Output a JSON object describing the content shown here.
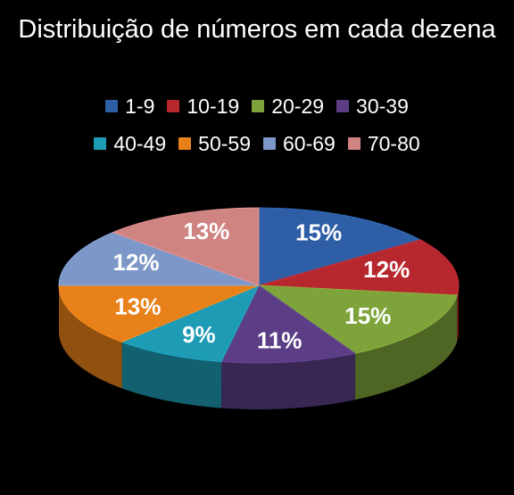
{
  "chart_data": {
    "type": "pie",
    "title": "Distribuição de números em cada dezena",
    "categories": [
      "1-9",
      "10-19",
      "20-29",
      "30-39",
      "40-49",
      "50-59",
      "60-69",
      "70-80"
    ],
    "values": [
      15,
      12,
      15,
      11,
      9,
      13,
      12,
      13
    ],
    "labels": [
      "15%",
      "12%",
      "15%",
      "11%",
      "9%",
      "13%",
      "12%",
      "13%"
    ],
    "colors": [
      "#2E5FA6",
      "#B7282E",
      "#7EA33A",
      "#5B3E86",
      "#1E9BB5",
      "#E88119",
      "#7D98C8",
      "#D08482"
    ],
    "legend_position": "top"
  }
}
